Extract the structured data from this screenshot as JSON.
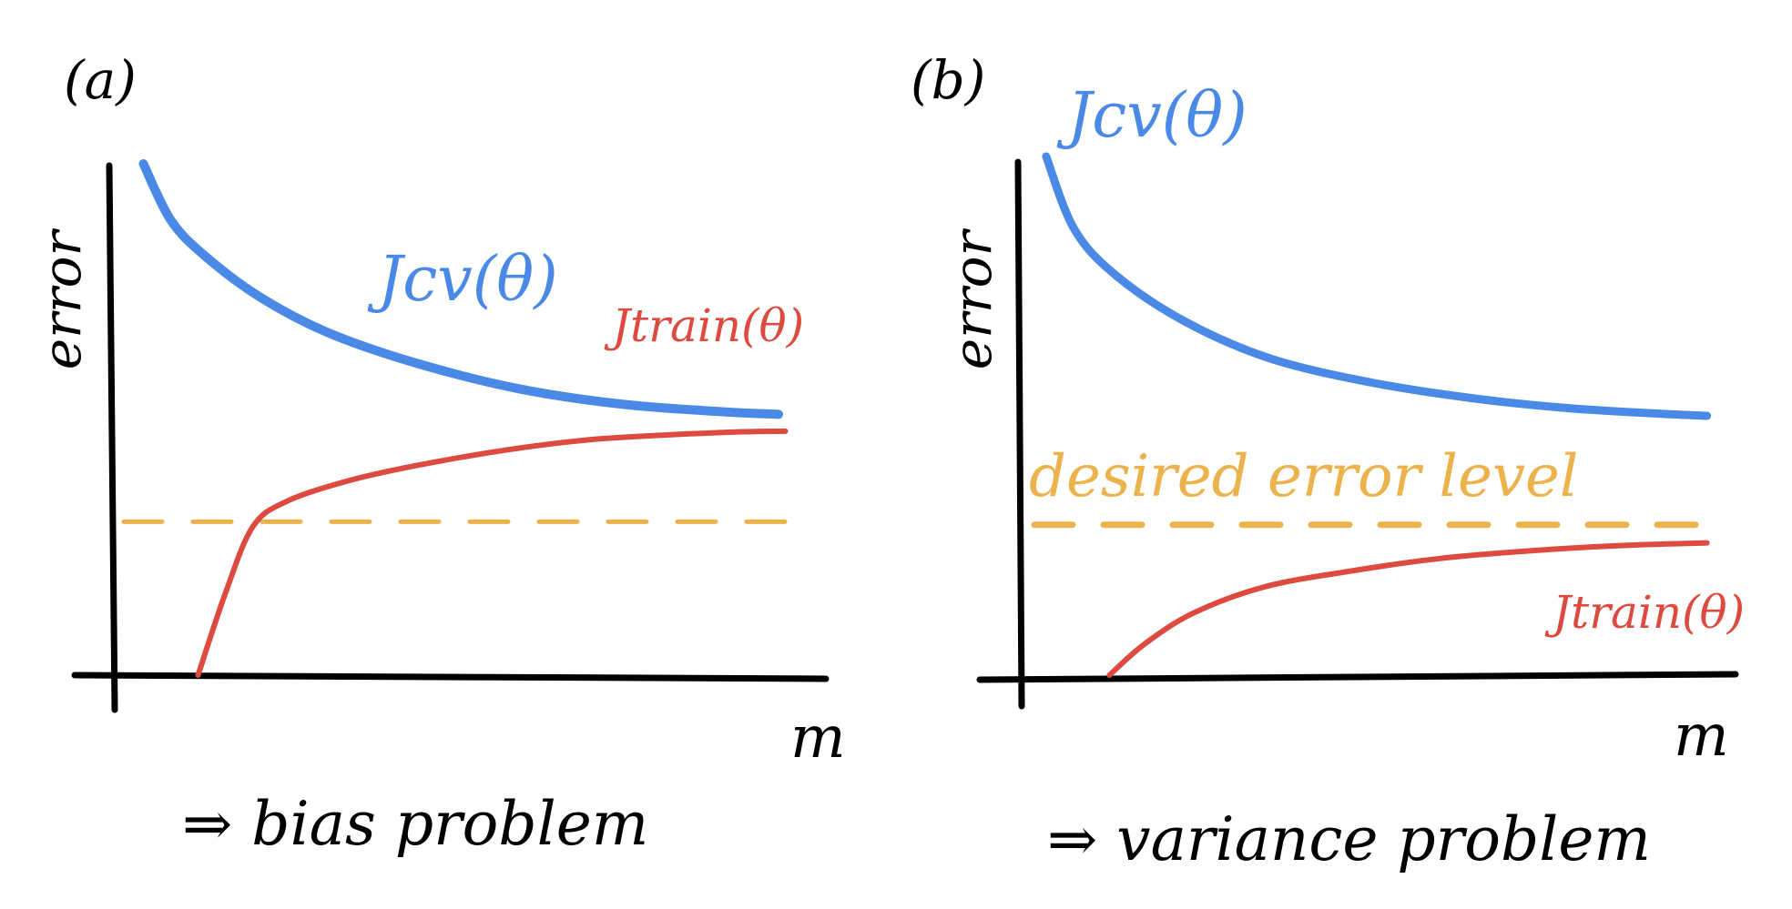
{
  "colors": {
    "cv": "#4a8ae6",
    "train": "#dc4a40",
    "desired": "#ecb24c",
    "ink": "#000000"
  },
  "chart_data": [
    {
      "type": "line",
      "panel_label": "(a)",
      "xlabel": "m",
      "ylabel": "error",
      "conclusion": "⇒ bias problem",
      "x_range": [
        0,
        1
      ],
      "y_range": [
        0,
        1
      ],
      "grid": false,
      "series": [
        {
          "name": "Jcv(θ)",
          "color_key": "cv",
          "x": [
            0.05,
            0.09,
            0.14,
            0.22,
            0.32,
            0.45,
            0.6,
            0.75,
            0.9,
            0.98
          ],
          "y": [
            1.0,
            0.89,
            0.82,
            0.74,
            0.67,
            0.61,
            0.56,
            0.53,
            0.515,
            0.51
          ]
        },
        {
          "name": "Jtrain(θ)",
          "color_key": "train",
          "x": [
            0.13,
            0.17,
            0.21,
            0.26,
            0.35,
            0.45,
            0.58,
            0.7,
            0.82,
            0.93,
            0.99
          ],
          "y": [
            0.0,
            0.16,
            0.29,
            0.34,
            0.38,
            0.41,
            0.44,
            0.46,
            0.47,
            0.476,
            0.477
          ]
        }
      ],
      "reference_lines": [
        {
          "name": "",
          "color_key": "desired",
          "style": "dashed",
          "y": 0.3
        }
      ]
    },
    {
      "type": "line",
      "panel_label": "(b)",
      "xlabel": "m",
      "ylabel": "error",
      "conclusion": "⇒ variance problem",
      "x_range": [
        0,
        1
      ],
      "y_range": [
        0,
        1
      ],
      "grid": false,
      "series": [
        {
          "name": "Jcv(θ)",
          "color_key": "cv",
          "x": [
            0.04,
            0.08,
            0.14,
            0.24,
            0.36,
            0.5,
            0.64,
            0.78,
            0.9,
            0.98
          ],
          "y": [
            1.0,
            0.86,
            0.77,
            0.68,
            0.61,
            0.565,
            0.535,
            0.515,
            0.505,
            0.5
          ]
        },
        {
          "name": "Jtrain(θ)",
          "color_key": "train",
          "x": [
            0.13,
            0.18,
            0.25,
            0.35,
            0.47,
            0.6,
            0.73,
            0.86,
            0.98
          ],
          "y": [
            0.0,
            0.06,
            0.12,
            0.17,
            0.2,
            0.225,
            0.24,
            0.25,
            0.255
          ]
        }
      ],
      "reference_lines": [
        {
          "name": "desired error level",
          "color_key": "desired",
          "style": "dashed",
          "y": 0.29
        }
      ]
    }
  ]
}
